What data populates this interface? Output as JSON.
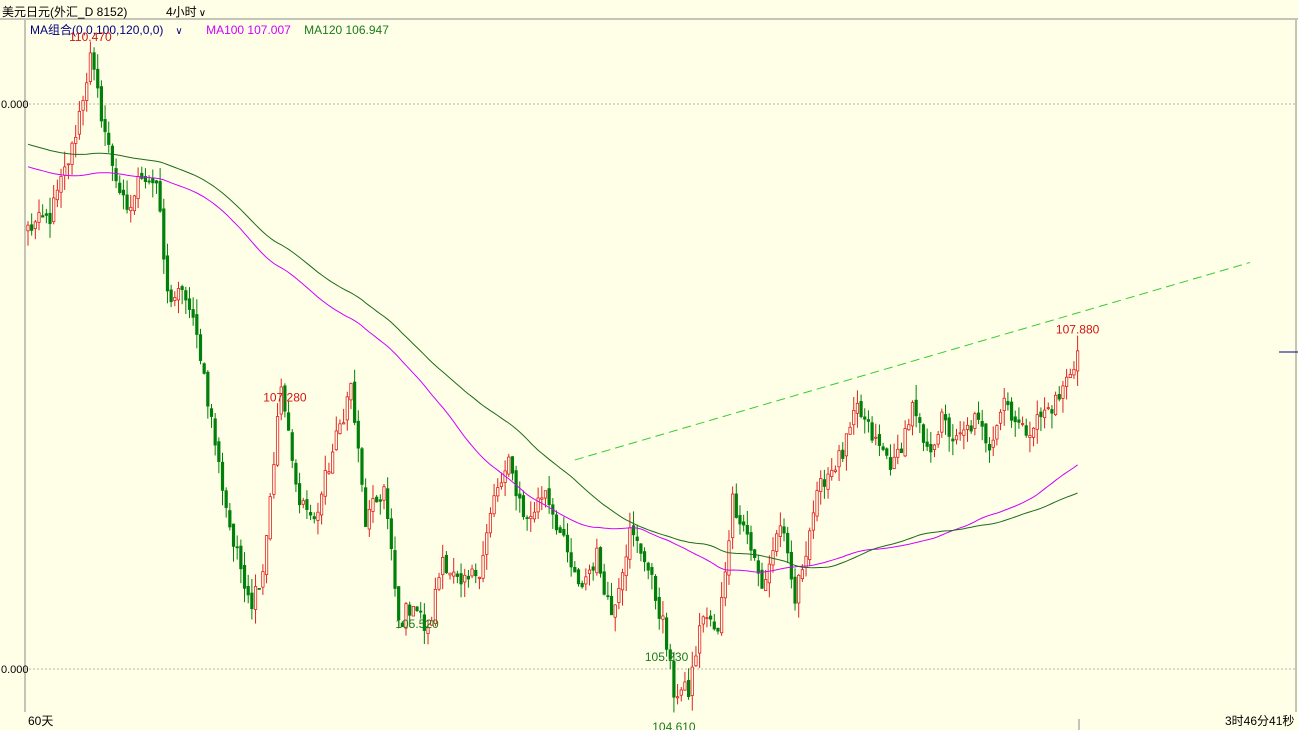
{
  "header": {
    "instrument_title": "美元日元(外汇_D 8152)",
    "period_label": "4小时",
    "ma_config_label": "MA组合(0,0,100,120,0,0)",
    "ma100_label": "MA100 107.007",
    "ma120_label": "MA120 106.947"
  },
  "footer": {
    "range_label": "60天",
    "countdown_label": "3时46分41秒"
  },
  "colors": {
    "background": "#ffffe8",
    "up_candle": "#e0201e",
    "down_candle": "#00800a",
    "ma100": "#d000ff",
    "ma120": "#1c6b1c",
    "trendline": "#33cc33",
    "high_label": "#d21414",
    "low_label": "#1c7a1c"
  },
  "chart_data": {
    "type": "candlestick",
    "symbol": "USDJPY",
    "timeframe": "4小时",
    "y_ticks": [
      "0.000",
      "0.000"
    ],
    "y_tick_values": [
      110.0,
      105.0
    ],
    "annotations": [
      {
        "label": "110.470",
        "value": 110.47,
        "kind": "high"
      },
      {
        "label": "105.520",
        "value": 105.52,
        "kind": "low"
      },
      {
        "label": "105.230",
        "value": 105.23,
        "kind": "low"
      },
      {
        "label": "107.280",
        "value": 107.28,
        "kind": "high"
      },
      {
        "label": "104.610",
        "value": 104.61,
        "kind": "low"
      },
      {
        "label": "107.880",
        "value": 107.88,
        "kind": "high"
      }
    ],
    "ma100_last": 107.007,
    "ma120_last": 106.947,
    "anchors": [
      [
        0,
        108.9
      ],
      [
        6,
        109.0
      ],
      [
        12,
        109.6
      ],
      [
        17,
        110.4
      ],
      [
        22,
        109.6
      ],
      [
        27,
        109.0
      ],
      [
        31,
        109.4
      ],
      [
        35,
        109.3
      ],
      [
        38,
        108.3
      ],
      [
        43,
        108.3
      ],
      [
        47,
        107.8
      ],
      [
        52,
        106.8
      ],
      [
        56,
        106.1
      ],
      [
        61,
        105.6
      ],
      [
        64,
        105.9
      ],
      [
        69,
        107.5
      ],
      [
        73,
        106.6
      ],
      [
        78,
        106.3
      ],
      [
        82,
        106.8
      ],
      [
        88,
        107.5
      ],
      [
        92,
        106.3
      ],
      [
        97,
        106.6
      ],
      [
        101,
        105.4
      ],
      [
        105,
        105.6
      ],
      [
        109,
        105.3
      ],
      [
        113,
        106.0
      ],
      [
        118,
        105.7
      ],
      [
        123,
        105.9
      ],
      [
        127,
        106.5
      ],
      [
        131,
        106.8
      ],
      [
        136,
        106.3
      ],
      [
        141,
        106.6
      ],
      [
        145,
        106.2
      ],
      [
        150,
        105.7
      ],
      [
        155,
        106.0
      ],
      [
        159,
        105.5
      ],
      [
        164,
        106.2
      ],
      [
        168,
        106.0
      ],
      [
        173,
        105.4
      ],
      [
        176,
        104.8
      ],
      [
        180,
        104.8
      ],
      [
        184,
        105.5
      ],
      [
        188,
        105.3
      ],
      [
        192,
        106.5
      ],
      [
        196,
        106.2
      ],
      [
        200,
        105.7
      ],
      [
        205,
        106.3
      ],
      [
        209,
        105.6
      ],
      [
        214,
        106.4
      ],
      [
        217,
        106.7
      ],
      [
        222,
        106.9
      ],
      [
        226,
        107.3
      ],
      [
        231,
        107.0
      ],
      [
        236,
        106.8
      ],
      [
        241,
        107.3
      ],
      [
        245,
        106.9
      ],
      [
        249,
        107.2
      ],
      [
        253,
        107.0
      ],
      [
        258,
        107.2
      ],
      [
        262,
        107.0
      ],
      [
        266,
        107.4
      ],
      [
        271,
        107.1
      ],
      [
        275,
        107.2
      ],
      [
        281,
        107.4
      ],
      [
        286,
        107.8
      ]
    ],
    "trendline": {
      "x_start": 149,
      "y_start": 106.85,
      "slope_per_bar": 0.0095
    }
  }
}
